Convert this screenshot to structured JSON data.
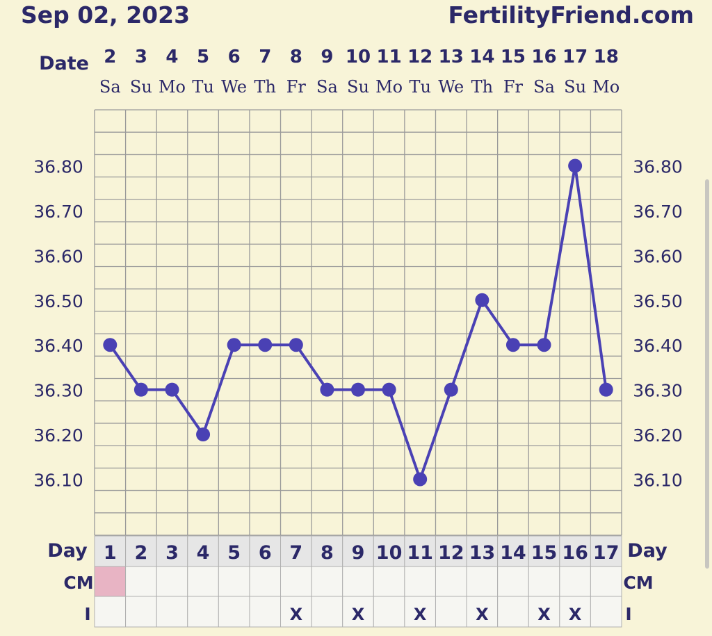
{
  "header": {
    "date": "Sep 02, 2023",
    "site": "FertilityFriend.com"
  },
  "labels": {
    "date_row": "Date",
    "day_row": "Day",
    "cm_row": "CM",
    "i_row": "I"
  },
  "colors": {
    "line": "#4a41b4",
    "grid": "#9a9a9a",
    "plot_bg": "#f8f4d8",
    "day_cell_bg": "#e6e6e6",
    "cm_mark": "#e8b4c4",
    "text": "#2b2868"
  },
  "chart_data": {
    "type": "line",
    "x": [
      "2",
      "3",
      "4",
      "5",
      "6",
      "7",
      "8",
      "9",
      "10",
      "11",
      "12",
      "13",
      "14",
      "15",
      "16",
      "17",
      "18"
    ],
    "weekdays": [
      "Sa",
      "Su",
      "Mo",
      "Tu",
      "We",
      "Th",
      "Fr",
      "Sa",
      "Su",
      "Mo",
      "Tu",
      "We",
      "Th",
      "Fr",
      "Sa",
      "Su",
      "Mo"
    ],
    "cycle_days": [
      "1",
      "2",
      "3",
      "4",
      "5",
      "6",
      "7",
      "8",
      "9",
      "10",
      "11",
      "12",
      "13",
      "14",
      "15",
      "16",
      "17"
    ],
    "series": [
      {
        "values": [
          36.4,
          36.3,
          36.3,
          36.2,
          36.4,
          36.4,
          36.4,
          36.3,
          36.3,
          36.3,
          36.1,
          36.3,
          36.5,
          36.4,
          36.4,
          36.8,
          36.3
        ]
      }
    ],
    "y_ticks": [
      "36.80",
      "36.70",
      "36.60",
      "36.50",
      "36.40",
      "36.30",
      "36.20",
      "36.10"
    ],
    "ylim": [
      35.975,
      36.925
    ],
    "grid": true,
    "cm": [
      "marked",
      "",
      "",
      "",
      "",
      "",
      "",
      "",
      "",
      "",
      "",
      "",
      "",
      "",
      "",
      "",
      ""
    ],
    "intercourse": [
      "",
      "",
      "",
      "",
      "",
      "",
      "X",
      "",
      "X",
      "",
      "X",
      "",
      "X",
      "",
      "X",
      "X",
      ""
    ]
  }
}
